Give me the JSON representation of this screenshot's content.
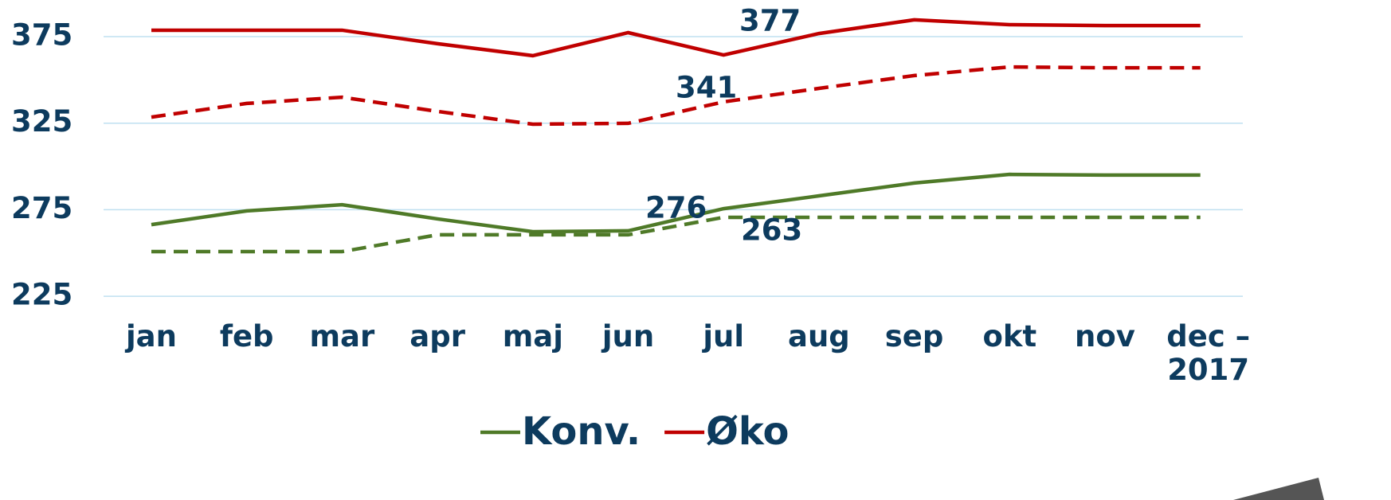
{
  "chart_data": {
    "type": "line",
    "categories": [
      "jan",
      "feb",
      "mar",
      "apr",
      "maj",
      "jun",
      "jul",
      "aug",
      "sep",
      "okt",
      "nov",
      "dec – 2017"
    ],
    "series": [
      {
        "name": "Konv.",
        "color": "#4f7a28",
        "dashed": false,
        "values": [
          266.4,
          274.3,
          277.9,
          269.7,
          262.3,
          262.8,
          275.6,
          283,
          290.4,
          295.4,
          295,
          295
        ]
      },
      {
        "name": "Øko",
        "color": "#c00000",
        "dashed": false,
        "values": [
          378.7,
          378.7,
          378.7,
          370.9,
          364,
          377.3,
          364.4,
          376.8,
          384.7,
          381.9,
          381.4,
          381.4
        ]
      },
      {
        "color": "#c00000",
        "dashed": true,
        "values": [
          328.5,
          336.4,
          340,
          331.8,
          324.4,
          324.9,
          337.3,
          345.1,
          352.5,
          357.5,
          357,
          357
        ]
      },
      {
        "color": "#4f7a28",
        "dashed": true,
        "values": [
          250.8,
          250.8,
          250.8,
          260.5,
          260.5,
          260.5,
          270.6,
          270.6,
          270.6,
          270.6,
          270.6,
          270.6
        ]
      }
    ],
    "annotations": [
      "377",
      "341",
      "276",
      "263"
    ],
    "ylim": [
      225,
      395
    ],
    "yticks": [
      225,
      275,
      325,
      375
    ],
    "grid": true,
    "legend": "bottom"
  }
}
